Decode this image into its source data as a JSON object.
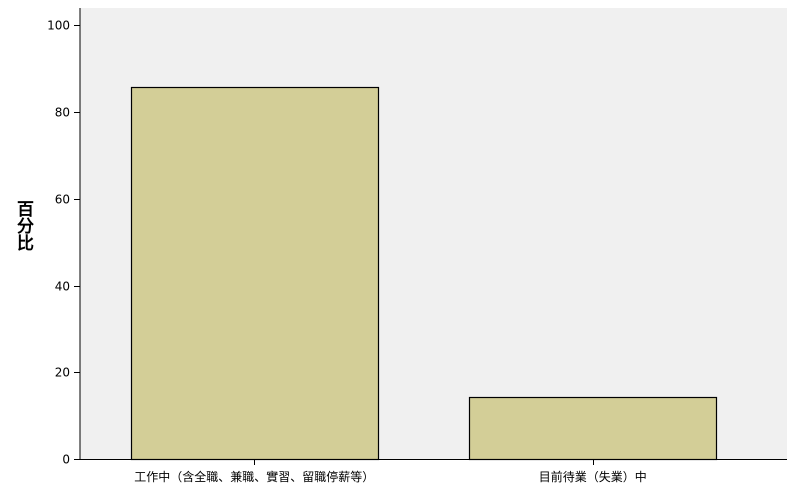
{
  "chart_data": {
    "type": "bar",
    "categories": [
      "工作中（含全職、兼職、實習、留職停薪等）",
      "目前待業（失業）中"
    ],
    "values": [
      85.7,
      14.3
    ],
    "title": "",
    "xlabel": "",
    "ylabel": "百分比",
    "ylim": [
      0,
      104
    ],
    "yticks": [
      0,
      20,
      40,
      60,
      80,
      100
    ],
    "grid": false,
    "legend": "none"
  },
  "colors": {
    "plot_background": "#f0f0f0",
    "bar_fill": "#d3ce97",
    "bar_stroke": "#000000",
    "axis": "#000000"
  }
}
